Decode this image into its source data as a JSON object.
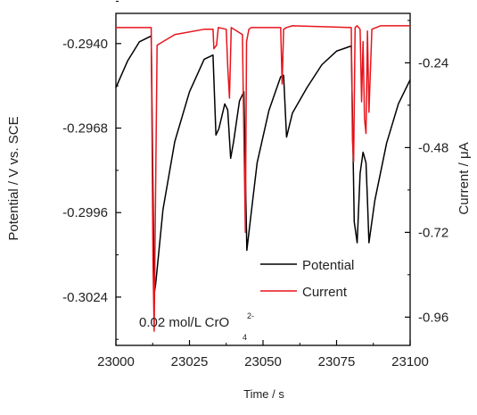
{
  "chart_data": {
    "type": "line",
    "xlabel": "Time / s",
    "ylabel_left": "Potential / V vs. SCE",
    "ylabel_right": "Current / μA",
    "xlim": [
      23000,
      23100
    ],
    "ylim_left": [
      -0.304,
      -0.293
    ],
    "ylim_right": [
      -1.04,
      -0.1
    ],
    "x_ticks": [
      "23000",
      "23025",
      "23050",
      "23075",
      "23100"
    ],
    "x_tick_values": [
      23000,
      23025,
      23050,
      23075,
      23100
    ],
    "y_left_ticks": [
      "-0.2940",
      "-0.2968",
      "-0.2996",
      "-0.3024"
    ],
    "y_left_tick_values": [
      -0.294,
      -0.2968,
      -0.2996,
      -0.3024
    ],
    "y_right_ticks": [
      "-0.24",
      "-0.48",
      "-0.72",
      "-0.96"
    ],
    "y_right_tick_values": [
      -0.24,
      -0.48,
      -0.72,
      -0.96
    ],
    "grid": false,
    "legend_position": "bottom-right",
    "annotation": {
      "main": "0.02 mol/L CrO",
      "superscript": "2-",
      "subscript": "4"
    },
    "series": [
      {
        "name": "Potential",
        "color": "#000000",
        "axis": "left",
        "x": [
          23000,
          23004,
          23008,
          23012,
          23013,
          23013.5,
          23016,
          23020,
          23025,
          23030,
          23033,
          23034,
          23035,
          23037,
          23038,
          23039,
          23040,
          23042,
          23043.5,
          23044.5,
          23046,
          23048,
          23052,
          23056,
          23057,
          23058,
          23060,
          23065,
          23070,
          23075,
          23080,
          23081,
          23082,
          23083,
          23084,
          23085,
          23085.5,
          23086,
          23088,
          23092,
          23096,
          23100
        ],
        "y": [
          -0.29546,
          -0.29457,
          -0.29394,
          -0.29375,
          -0.3023,
          -0.30198,
          -0.2995,
          -0.29725,
          -0.2956,
          -0.29452,
          -0.29438,
          -0.29703,
          -0.29682,
          -0.296,
          -0.2962,
          -0.2978,
          -0.29725,
          -0.2959,
          -0.2956,
          -0.30085,
          -0.2996,
          -0.29795,
          -0.29622,
          -0.2951,
          -0.29505,
          -0.2971,
          -0.2963,
          -0.29545,
          -0.2947,
          -0.29425,
          -0.29408,
          -0.2999,
          -0.3006,
          -0.2983,
          -0.2976,
          -0.29795,
          -0.2992,
          -0.3006,
          -0.2992,
          -0.2973,
          -0.296,
          -0.2952
        ]
      },
      {
        "name": "Current",
        "color": "#e8141c",
        "axis": "right",
        "x": [
          23000,
          23012,
          23012.6,
          23013,
          23014,
          23020,
          23030,
          23033,
          23033.3,
          23034.2,
          23034.8,
          23037.5,
          23038,
          23038.6,
          23039.2,
          23043,
          23043.5,
          23044,
          23044.4,
          23045.2,
          23046,
          23056,
          23056.5,
          23057,
          23058,
          23060,
          23080,
          23080.4,
          23080.8,
          23081.3,
          23082,
          23083,
          23083.5,
          23084,
          23084.5,
          23085,
          23085.5,
          23086,
          23087,
          23090,
          23100
        ],
        "y": [
          -0.14,
          -0.14,
          -0.8,
          -1.0,
          -0.19,
          -0.16,
          -0.145,
          -0.145,
          -0.2,
          -0.19,
          -0.14,
          -0.145,
          -0.25,
          -0.34,
          -0.14,
          -0.16,
          -0.45,
          -0.72,
          -0.18,
          -0.145,
          -0.14,
          -0.14,
          -0.3,
          -0.145,
          -0.14,
          -0.135,
          -0.14,
          -0.46,
          -0.52,
          -0.14,
          -0.135,
          -0.145,
          -0.35,
          -0.18,
          -0.4,
          -0.44,
          -0.15,
          -0.38,
          -0.145,
          -0.135,
          -0.135
        ]
      }
    ]
  }
}
